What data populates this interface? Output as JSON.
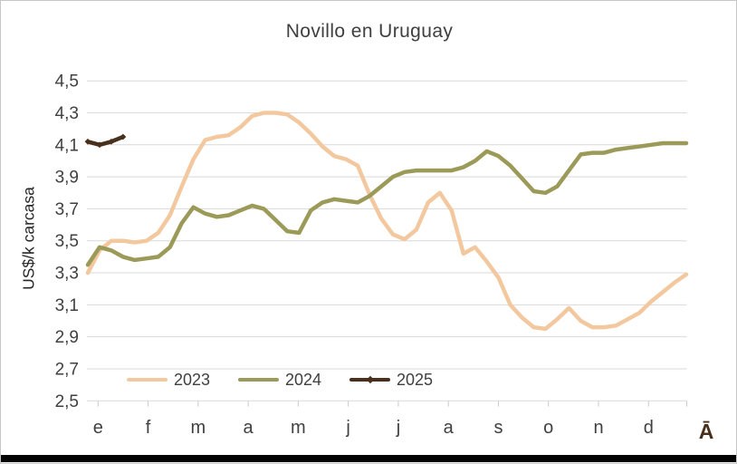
{
  "title": "Novillo en Uruguay",
  "y_axis": {
    "label": "US$/k carcasa",
    "tick_labels": [
      "4,5",
      "4,3",
      "4,1",
      "3,9",
      "3,7",
      "3,5",
      "3,3",
      "3,1",
      "2,9",
      "2,7",
      "2,5"
    ],
    "tick_values": [
      4.5,
      4.3,
      4.1,
      3.9,
      3.7,
      3.5,
      3.3,
      3.1,
      2.9,
      2.7,
      2.5
    ]
  },
  "x_axis": {
    "month_labels": [
      "e",
      "f",
      "m",
      "a",
      "m",
      "j",
      "j",
      "a",
      "s",
      "o",
      "n",
      "d"
    ],
    "extra_label": "Ā",
    "extra_label_color": "#48301c"
  },
  "legend": {
    "items": [
      {
        "label": "2023",
        "color": "#f3c89f",
        "has_marker": false
      },
      {
        "label": "2024",
        "color": "#9b9a58",
        "has_marker": false
      },
      {
        "label": "2025",
        "color": "#48301c",
        "has_marker": true
      }
    ]
  },
  "colors": {
    "gridline": "#d9d9d9",
    "axis_tick": "#c9c9c9",
    "tick_label": "#404040",
    "title_text": "#3f3f3f"
  },
  "chart_data": {
    "type": "line",
    "title": "Novillo en Uruguay",
    "xlabel": "",
    "ylabel": "US$/k carcasa",
    "ylim": [
      2.5,
      4.5
    ],
    "ytick_step": 0.2,
    "x_unit": "weekly points, January (e) through December (d)",
    "grid": "horizontal only",
    "legend_position": "bottom",
    "series": [
      {
        "name": "2023",
        "color": "#f3c89f",
        "values": [
          3.3,
          3.44,
          3.5,
          3.5,
          3.49,
          3.5,
          3.55,
          3.66,
          3.84,
          4.01,
          4.13,
          4.15,
          4.16,
          4.21,
          4.28,
          4.3,
          4.3,
          4.29,
          4.24,
          4.17,
          4.09,
          4.03,
          4.01,
          3.97,
          3.79,
          3.64,
          3.54,
          3.51,
          3.57,
          3.74,
          3.8,
          3.69,
          3.42,
          3.46,
          3.37,
          3.27,
          3.1,
          3.02,
          2.96,
          2.95,
          3.01,
          3.08,
          3.0,
          2.96,
          2.96,
          2.97,
          3.01,
          3.05,
          3.12,
          3.18,
          3.24,
          3.29
        ]
      },
      {
        "name": "2024",
        "color": "#9b9a58",
        "values": [
          3.35,
          3.46,
          3.44,
          3.4,
          3.38,
          3.39,
          3.4,
          3.46,
          3.61,
          3.71,
          3.67,
          3.65,
          3.66,
          3.69,
          3.72,
          3.7,
          3.63,
          3.56,
          3.55,
          3.69,
          3.74,
          3.76,
          3.75,
          3.74,
          3.78,
          3.84,
          3.9,
          3.93,
          3.94,
          3.94,
          3.94,
          3.94,
          3.96,
          4.0,
          4.06,
          4.03,
          3.97,
          3.89,
          3.81,
          3.8,
          3.84,
          3.94,
          4.04,
          4.05,
          4.05,
          4.07,
          4.08,
          4.09,
          4.1,
          4.11,
          4.11,
          4.11
        ]
      },
      {
        "name": "2025",
        "color": "#48301c",
        "markers": true,
        "values": [
          4.12,
          4.1,
          4.12,
          4.15
        ]
      }
    ]
  }
}
